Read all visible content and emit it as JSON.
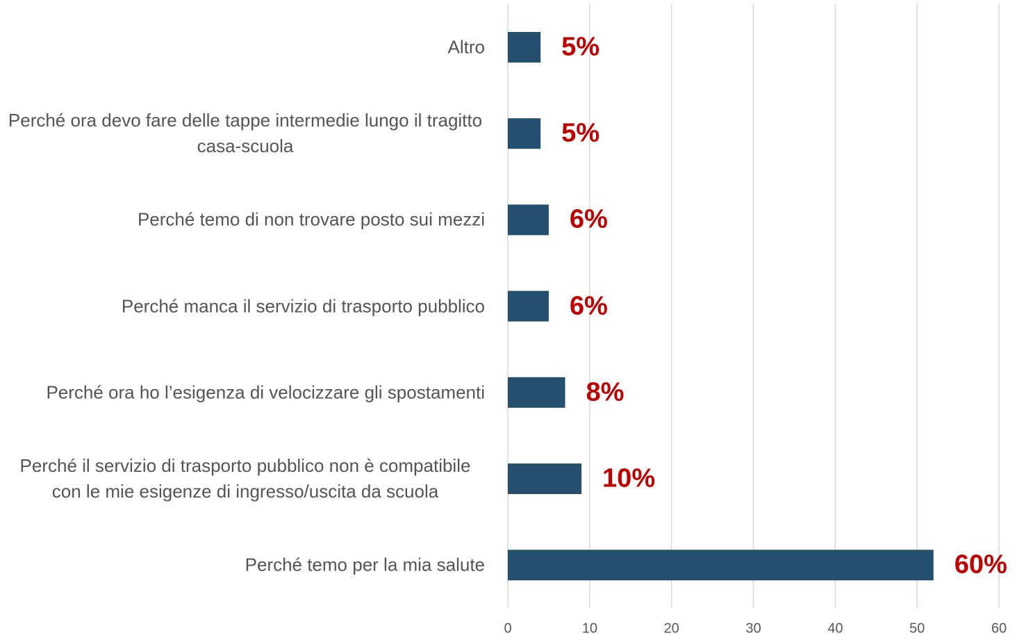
{
  "chart_data": {
    "type": "bar",
    "orientation": "horizontal",
    "categories": [
      "Altro",
      "Perché ora devo fare delle tappe intermedie lungo il tragitto casa-scuola",
      "Perché temo di non trovare posto sui mezzi",
      "Perché manca il servizio di trasporto pubblico",
      "Perché ora ho l’esigenza di velocizzare gli spostamenti",
      "Perché il servizio di trasporto pubblico non è compatibile con le mie esigenze di ingresso/uscita da scuola",
      "Perché temo per la mia salute"
    ],
    "values": [
      4,
      4,
      5,
      5,
      7,
      9,
      52
    ],
    "annotations": [
      "5%",
      "5%",
      "6%",
      "6%",
      "8%",
      "10%",
      "60%"
    ],
    "color": "#244f6e",
    "annotation_color": "#c00000",
    "xlim": [
      0,
      60
    ],
    "xticks": [
      0,
      10,
      20,
      30,
      40,
      50,
      60
    ],
    "grid": true
  }
}
